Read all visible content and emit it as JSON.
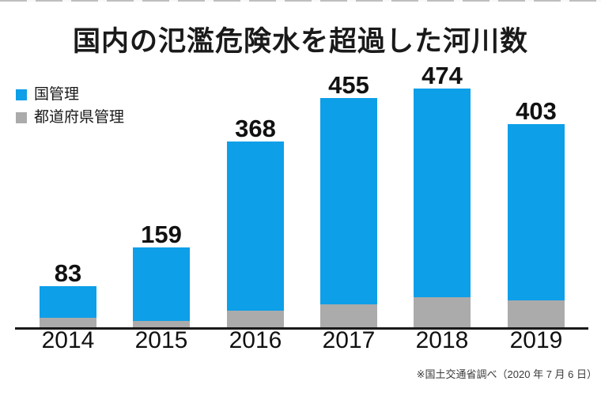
{
  "title": "国内の氾濫危険水を超過した河川数",
  "legend": {
    "items": [
      {
        "label": "国管理",
        "color": "#0d9fe8"
      },
      {
        "label": "都道府県管理",
        "color": "#ababab"
      }
    ]
  },
  "footnote": "※国土交通省調べ（2020 年 7 月 6 日）",
  "colors": {
    "national_blue": "#0d9fe8",
    "prefectural_gray": "#ababab",
    "axis_black": "#1a1a1a",
    "background": "#ffffff"
  },
  "chart_data": {
    "type": "bar",
    "stacked": true,
    "title": "国内の氾濫危険水を超過した河川数",
    "categories": [
      "2014",
      "2015",
      "2016",
      "2017",
      "2018",
      "2019"
    ],
    "series": [
      {
        "name": "国管理",
        "color": "#0d9fe8",
        "values": [
          63,
          145,
          334,
          408,
          413,
          348
        ]
      },
      {
        "name": "都道府県管理",
        "color": "#ababab",
        "values": [
          20,
          14,
          34,
          47,
          61,
          55
        ]
      }
    ],
    "totals": [
      83,
      159,
      368,
      455,
      474,
      403
    ],
    "bar_labels": [
      "83",
      "159",
      "368",
      "455",
      "474",
      "403"
    ],
    "xlabel": "",
    "ylabel": "",
    "ylim": [
      0,
      500
    ],
    "grid": false,
    "legend_position": "top-left",
    "source": "※国土交通省調べ（2020 年 7 月 6 日）"
  }
}
